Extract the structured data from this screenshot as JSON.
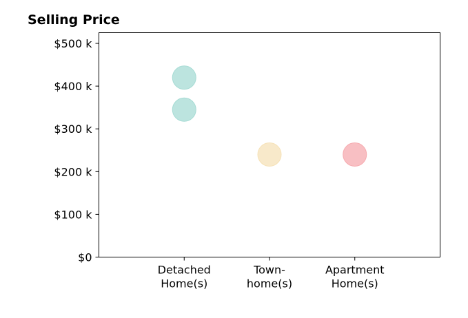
{
  "chart_data": {
    "type": "scatter",
    "title": "Selling Price",
    "xlabel": "",
    "ylabel": "",
    "categories": [
      [
        "Detached",
        "Home(s)"
      ],
      [
        "Town-",
        "home(s)"
      ],
      [
        "Apartment",
        "Home(s)"
      ]
    ],
    "x_range": [
      0,
      4
    ],
    "ylim": [
      0,
      525000
    ],
    "y_ticks": [
      0,
      100000,
      200000,
      300000,
      400000,
      500000
    ],
    "y_tick_labels": [
      "$0",
      "$100 k",
      "$200 k",
      "$300 k",
      "$400 k",
      "$500 k"
    ],
    "grid": false,
    "legend": "none",
    "points": [
      {
        "category": 0,
        "value": 420000,
        "color": "#a6dbd4"
      },
      {
        "category": 0,
        "value": 345000,
        "color": "#a6dbd4"
      },
      {
        "category": 1,
        "value": 240000,
        "color": "#f6e2b8"
      },
      {
        "category": 2,
        "value": 240000,
        "color": "#f6aaaf"
      }
    ]
  }
}
